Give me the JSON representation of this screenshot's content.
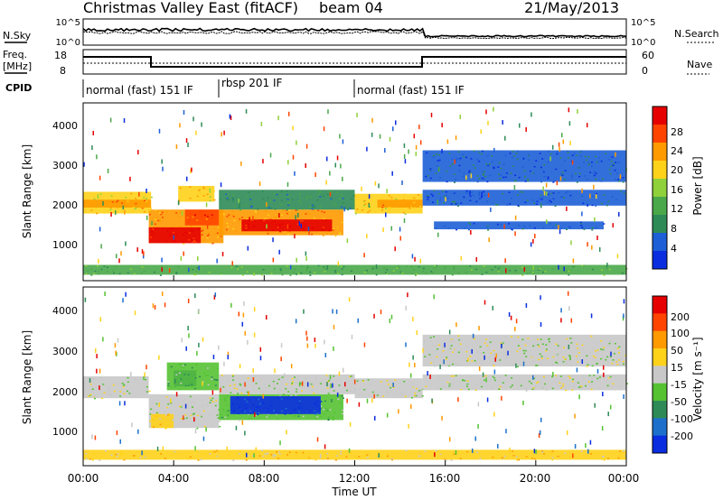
{
  "header": {
    "station": "Christmas Valley East (fitACF)",
    "beam": "beam 04",
    "date": "21/May/2013"
  },
  "noise_panel": {
    "left_label": "N.Sky",
    "left_ticks": [
      "10^5",
      "10^0"
    ],
    "right_label": "N.Search",
    "right_ticks": [
      "10^5",
      "10^0"
    ]
  },
  "freq_panel": {
    "left_label_1": "Freq.",
    "left_label_2": "[MHz]",
    "left_ticks": [
      "18",
      "8"
    ],
    "right_label": "Nave",
    "right_ticks": [
      "60",
      "0"
    ]
  },
  "cpid": {
    "label": "CPID",
    "segments": [
      {
        "text": "normal (fast) 151 IF",
        "start_hour": 0,
        "end_hour": 6
      },
      {
        "text": "rbsp 201 IF",
        "start_hour": 6,
        "end_hour": 12
      },
      {
        "text": "normal (fast) 151 IF",
        "start_hour": 12,
        "end_hour": 24
      }
    ]
  },
  "x_axis": {
    "label": "Time UT",
    "ticks": [
      "00:00",
      "04:00",
      "08:00",
      "12:00",
      "16:00",
      "20:00",
      "00:00"
    ]
  },
  "power_panel": {
    "ylabel": "Slant Range [km]",
    "yticks": [
      "1000",
      "2000",
      "3000",
      "4000"
    ],
    "colorbar_label": "Power [dB]",
    "colorbar_ticks": [
      "28",
      "24",
      "20",
      "16",
      "12",
      "8",
      "4"
    ],
    "colors": [
      "#0a2de0",
      "#1d5fd6",
      "#2e8b57",
      "#4aa84a",
      "#8fd13a",
      "#ffd21a",
      "#ff9a00",
      "#ff4400",
      "#e60000"
    ]
  },
  "velocity_panel": {
    "ylabel": "Slant Range [km]",
    "yticks": [
      "1000",
      "2000",
      "3000",
      "4000"
    ],
    "colorbar_label": "Velocity [m s⁻¹]",
    "colorbar_ticks": [
      "200",
      "100",
      "50",
      "15",
      "-15",
      "-50",
      "-100",
      "-200"
    ],
    "colors": [
      "#0a2de0",
      "#1d6fcc",
      "#2e8b57",
      "#55c232",
      "#c8c8c8",
      "#ffd21a",
      "#ff9a00",
      "#ff4400",
      "#e60000"
    ]
  },
  "chart_data": {
    "type": "heatmap",
    "x_range_hours": [
      0,
      24
    ],
    "y_range_km": [
      0,
      4500
    ],
    "power_bands": [
      {
        "t0": 0.0,
        "t1": 3.0,
        "r0": 1700,
        "r1": 2250,
        "level": 5
      },
      {
        "t0": 0.0,
        "t1": 3.0,
        "r0": 1850,
        "r1": 2050,
        "level": 6
      },
      {
        "t0": 2.9,
        "t1": 6.2,
        "r0": 950,
        "r1": 1800,
        "level": 6
      },
      {
        "t0": 2.9,
        "t1": 5.2,
        "r0": 950,
        "r1": 1350,
        "level": 8
      },
      {
        "t0": 4.5,
        "t1": 6.0,
        "r0": 1400,
        "r1": 1800,
        "level": 7
      },
      {
        "t0": 4.2,
        "t1": 5.8,
        "r0": 2000,
        "r1": 2400,
        "level": 5
      },
      {
        "t0": 6.0,
        "t1": 11.5,
        "r0": 1150,
        "r1": 1800,
        "level": 6
      },
      {
        "t0": 7.0,
        "t1": 11.0,
        "r0": 1250,
        "r1": 1550,
        "level": 8
      },
      {
        "t0": 6.0,
        "t1": 12.0,
        "r0": 1800,
        "r1": 2300,
        "level": 2
      },
      {
        "t0": 12.0,
        "t1": 15.0,
        "r0": 1700,
        "r1": 2200,
        "level": 5
      },
      {
        "t0": 13.0,
        "t1": 15.0,
        "r0": 1850,
        "r1": 2050,
        "level": 6
      },
      {
        "t0": 15.0,
        "t1": 24.0,
        "r0": 2500,
        "r1": 3300,
        "level": 1
      },
      {
        "t0": 15.0,
        "t1": 24.0,
        "r0": 1900,
        "r1": 2300,
        "level": 1
      },
      {
        "t0": 15.5,
        "t1": 23.0,
        "r0": 1300,
        "r1": 1500,
        "level": 1
      },
      {
        "t0": 0.0,
        "t1": 24.0,
        "r0": 150,
        "r1": 400,
        "level": 3
      }
    ],
    "velocity_bands": [
      {
        "t0": 0.0,
        "t1": 2.9,
        "r0": 1700,
        "r1": 2250,
        "level": 4
      },
      {
        "t0": 2.9,
        "t1": 6.0,
        "r0": 950,
        "r1": 1800,
        "level": 4
      },
      {
        "t0": 3.0,
        "t1": 4.0,
        "r0": 950,
        "r1": 1300,
        "level": 5
      },
      {
        "t0": 4.0,
        "t1": 5.0,
        "r0": 2000,
        "r1": 2400,
        "level": 0
      },
      {
        "t0": 3.7,
        "t1": 6.0,
        "r0": 1900,
        "r1": 2600,
        "level": 3
      },
      {
        "t0": 6.0,
        "t1": 11.5,
        "r0": 1150,
        "r1": 1800,
        "level": 3
      },
      {
        "t0": 6.5,
        "t1": 10.5,
        "r0": 1300,
        "r1": 1750,
        "level": 0
      },
      {
        "t0": 6.0,
        "t1": 12.0,
        "r0": 1800,
        "r1": 2300,
        "level": 4
      },
      {
        "t0": 12.0,
        "t1": 15.0,
        "r0": 1700,
        "r1": 2200,
        "level": 4
      },
      {
        "t0": 15.0,
        "t1": 24.0,
        "r0": 2500,
        "r1": 3300,
        "level": 4
      },
      {
        "t0": 15.0,
        "t1": 24.0,
        "r0": 1900,
        "r1": 2300,
        "level": 4
      },
      {
        "t0": 0.0,
        "t1": 24.0,
        "r0": 150,
        "r1": 400,
        "level": 5
      }
    ]
  }
}
